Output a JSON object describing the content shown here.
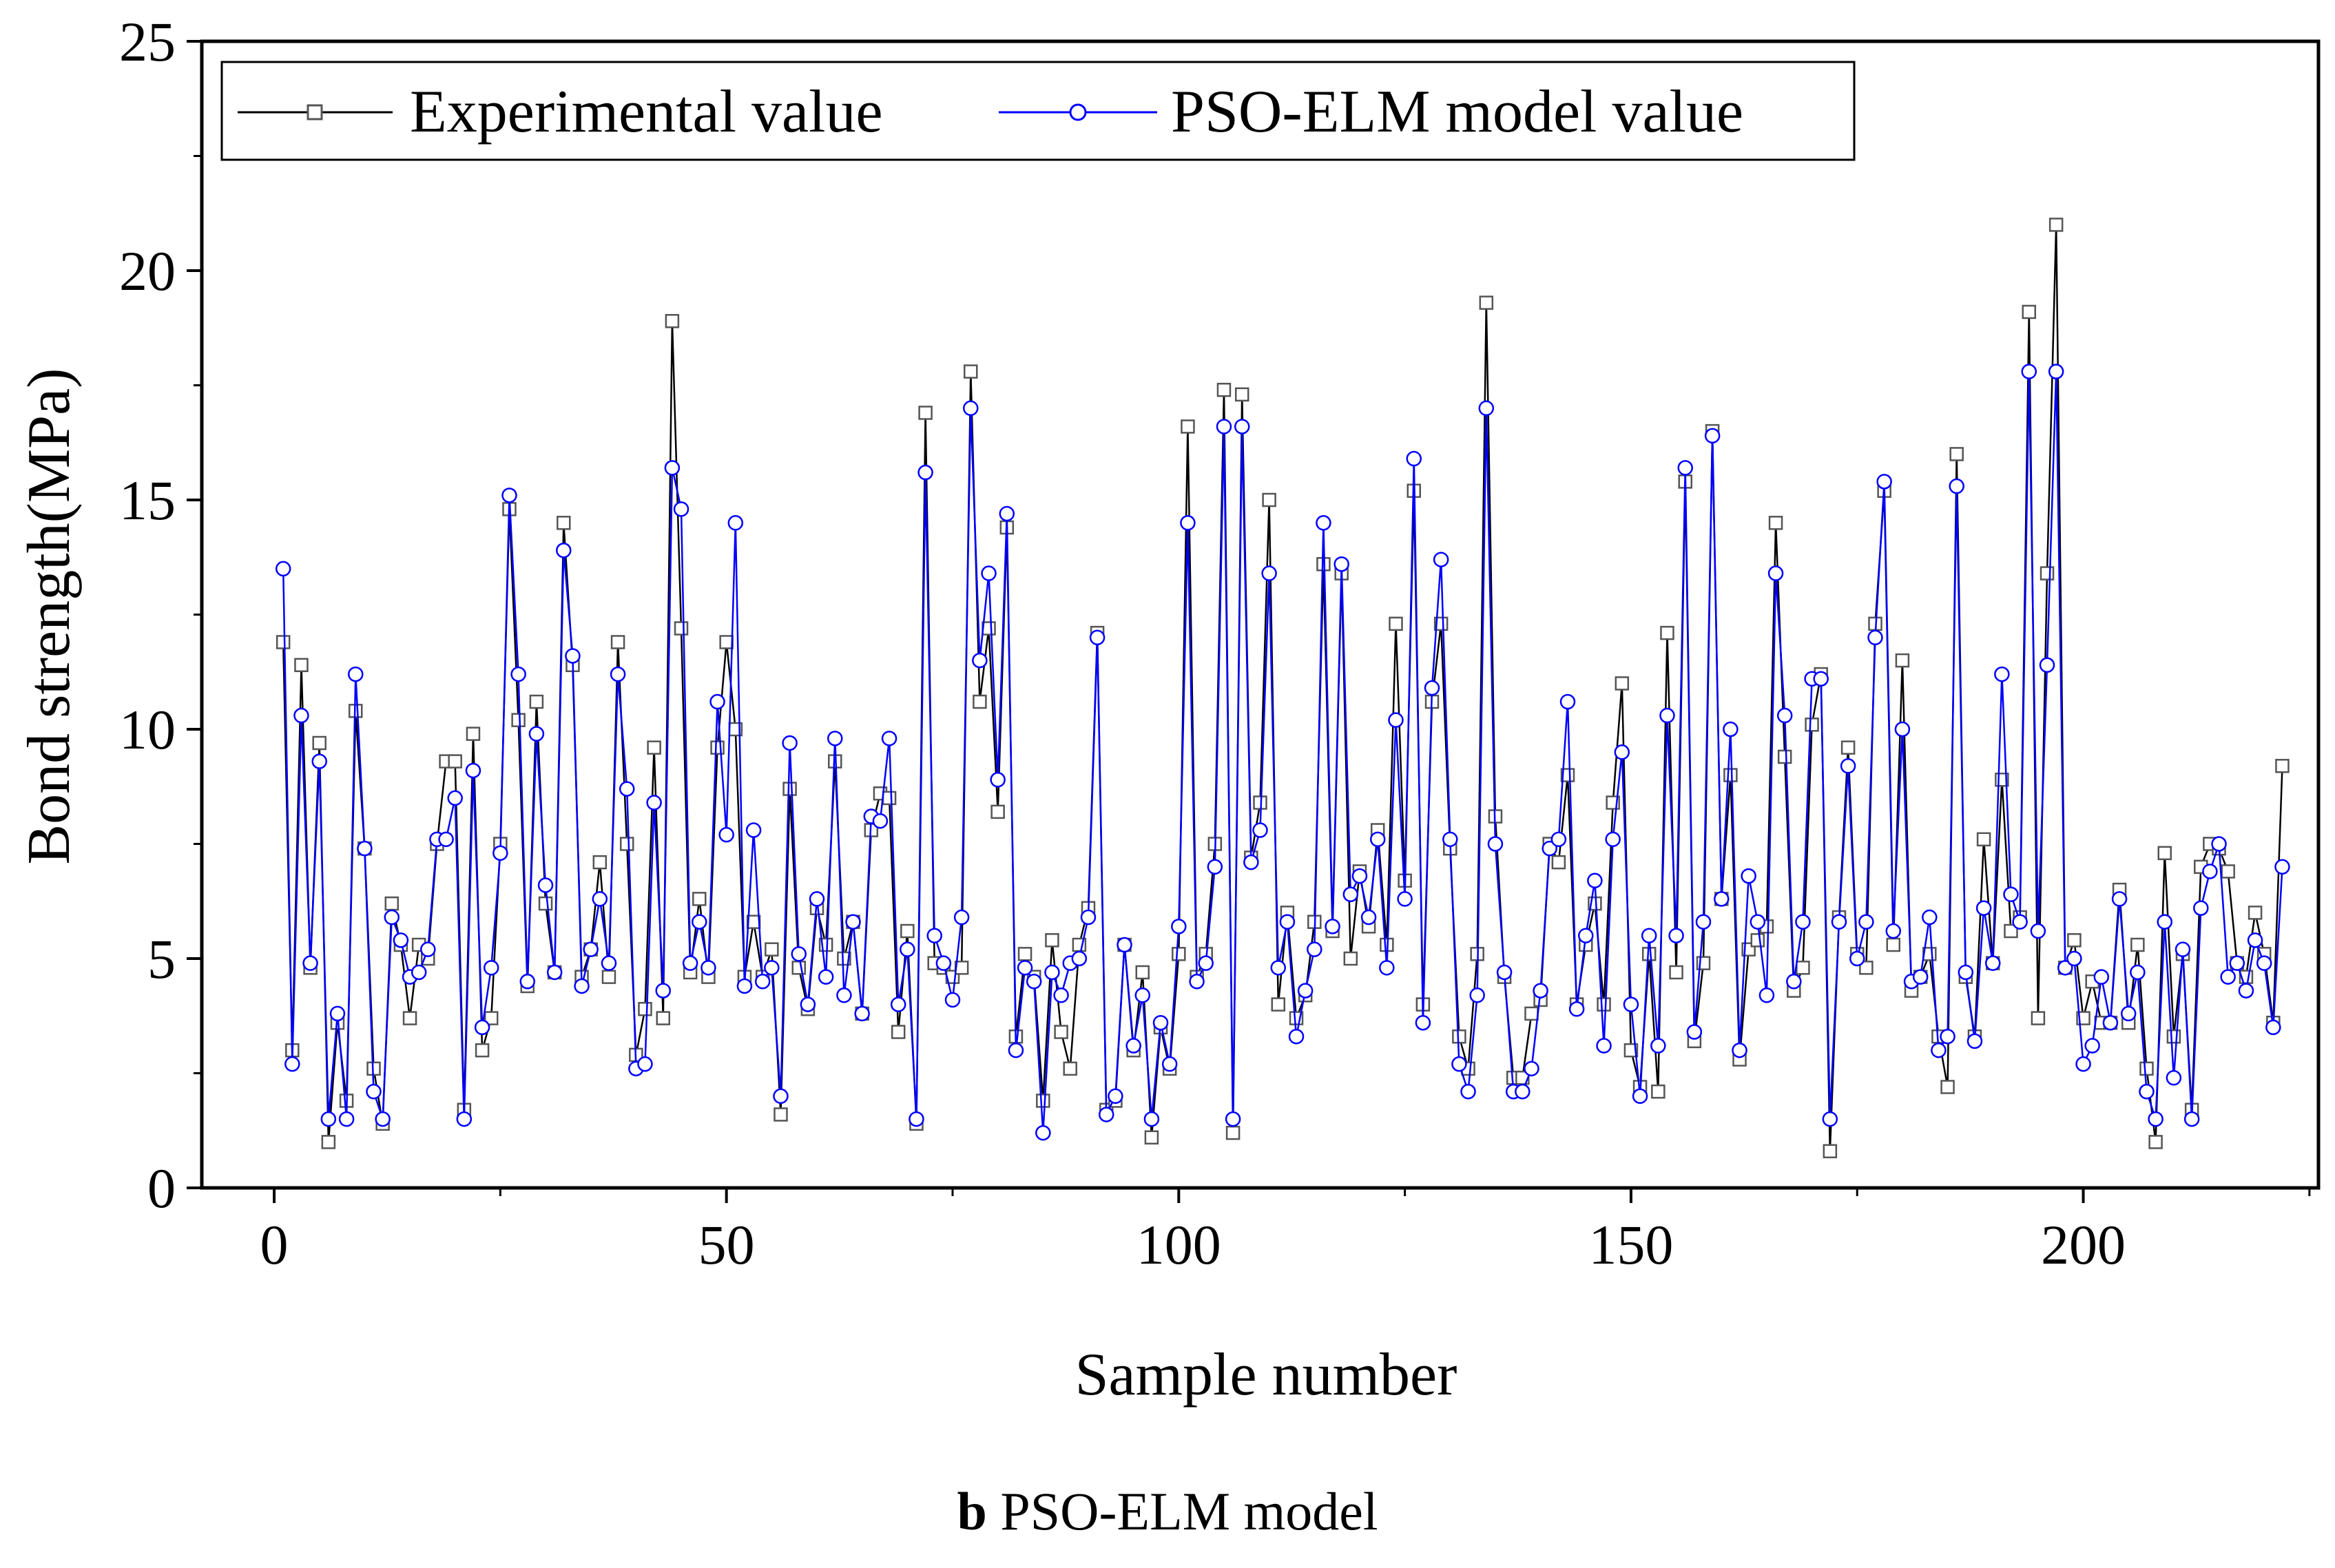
{
  "chart_data": {
    "type": "line",
    "title": "",
    "xlabel": "Sample number",
    "ylabel": "Bond strength(MPa)",
    "xlim": [
      -8,
      226
    ],
    "ylim": [
      0,
      25
    ],
    "xticks": [
      0,
      50,
      100,
      150,
      200
    ],
    "yticks": [
      0,
      5,
      10,
      15,
      20,
      25
    ],
    "legend_position": "top-left",
    "x": [
      1,
      2,
      3,
      4,
      5,
      6,
      7,
      8,
      9,
      10,
      11,
      12,
      13,
      14,
      15,
      16,
      17,
      18,
      19,
      20,
      21,
      22,
      23,
      24,
      25,
      26,
      27,
      28,
      29,
      30,
      31,
      32,
      33,
      34,
      35,
      36,
      37,
      38,
      39,
      40,
      41,
      42,
      43,
      44,
      45,
      46,
      47,
      48,
      49,
      50,
      51,
      52,
      53,
      54,
      55,
      56,
      57,
      58,
      59,
      60,
      61,
      62,
      63,
      64,
      65,
      66,
      67,
      68,
      69,
      70,
      71,
      72,
      73,
      74,
      75,
      76,
      77,
      78,
      79,
      80,
      81,
      82,
      83,
      84,
      85,
      86,
      87,
      88,
      89,
      90,
      91,
      92,
      93,
      94,
      95,
      96,
      97,
      98,
      99,
      100,
      101,
      102,
      103,
      104,
      105,
      106,
      107,
      108,
      109,
      110,
      111,
      112,
      113,
      114,
      115,
      116,
      117,
      118,
      119,
      120,
      121,
      122,
      123,
      124,
      125,
      126,
      127,
      128,
      129,
      130,
      131,
      132,
      133,
      134,
      135,
      136,
      137,
      138,
      139,
      140,
      141,
      142,
      143,
      144,
      145,
      146,
      147,
      148,
      149,
      150,
      151,
      152,
      153,
      154,
      155,
      156,
      157,
      158,
      159,
      160,
      161,
      162,
      163,
      164,
      165,
      166,
      167,
      168,
      169,
      170,
      171,
      172,
      173,
      174,
      175,
      176,
      177,
      178,
      179,
      180,
      181,
      182,
      183,
      184,
      185,
      186,
      187,
      188,
      189,
      190,
      191,
      192,
      193,
      194,
      195,
      196,
      197,
      198,
      199,
      200,
      201,
      202,
      203,
      204,
      205,
      206,
      207,
      208,
      209,
      210,
      211,
      212,
      213,
      214,
      215,
      216,
      217,
      218,
      219,
      220,
      221,
      222
    ],
    "series": [
      {
        "name": "Experimental value",
        "color": "#000000",
        "marker": "square",
        "values": [
          11.9,
          3.0,
          11.4,
          4.8,
          9.7,
          1.0,
          3.6,
          1.9,
          10.4,
          7.4,
          2.6,
          1.4,
          6.2,
          5.3,
          3.7,
          5.3,
          5.0,
          7.5,
          9.3,
          9.3,
          1.7,
          9.9,
          3.0,
          3.7,
          7.5,
          14.8,
          10.2,
          4.4,
          10.6,
          6.2,
          4.7,
          14.5,
          11.4,
          4.6,
          5.2,
          7.1,
          4.6,
          11.9,
          7.5,
          2.9,
          3.9,
          9.6,
          3.7,
          18.9,
          12.2,
          4.7,
          6.3,
          4.6,
          9.6,
          11.9,
          10.0,
          4.6,
          5.8,
          4.6,
          5.2,
          1.6,
          8.7,
          4.8,
          3.9,
          6.1,
          5.3,
          9.3,
          5.0,
          5.8,
          3.8,
          7.8,
          8.6,
          8.5,
          3.4,
          5.6,
          1.4,
          16.9,
          4.9,
          4.8,
          4.6,
          4.8,
          17.8,
          10.6,
          12.2,
          8.2,
          14.4,
          3.3,
          5.1,
          4.6,
          1.9,
          5.4,
          3.4,
          2.6,
          5.3,
          6.1,
          12.1,
          1.7,
          1.9,
          5.3,
          3.0,
          4.7,
          1.1,
          3.5,
          2.6,
          5.1,
          16.6,
          4.6,
          5.1,
          7.5,
          17.4,
          1.2,
          17.3,
          7.2,
          8.4,
          15.0,
          4.0,
          6.0,
          3.7,
          4.2,
          5.8,
          13.6,
          5.6,
          13.4,
          5.0,
          6.9,
          5.7,
          7.8,
          5.3,
          12.3,
          6.7,
          15.2,
          4.0,
          10.6,
          12.3,
          7.4,
          3.3,
          2.6,
          5.1,
          19.3,
          8.1,
          4.6,
          2.4,
          2.4,
          3.8,
          4.1,
          7.5,
          7.1,
          9.0,
          4.0,
          5.3,
          6.2,
          4.0,
          8.4,
          11.0,
          3.0,
          2.2,
          5.1,
          2.1,
          12.1,
          4.7,
          15.4,
          3.2,
          4.9,
          16.5,
          6.3,
          9.0,
          2.8,
          5.2,
          5.4,
          5.7,
          14.5,
          9.4,
          4.3,
          4.8,
          10.1,
          11.2,
          0.8,
          5.9,
          9.6,
          5.1,
          4.8,
          12.3,
          15.2,
          5.3,
          11.5,
          4.3,
          4.6,
          5.1,
          3.3,
          2.2,
          16.0,
          4.6,
          3.3,
          7.6,
          4.9,
          8.9,
          5.6,
          5.9,
          19.1,
          3.7,
          13.4,
          21.0,
          4.8,
          5.4,
          3.7,
          4.5,
          3.6,
          3.6,
          6.5,
          3.6,
          5.3,
          2.6,
          1.0,
          7.3,
          3.3,
          5.1,
          1.7,
          7.0,
          7.5,
          7.4,
          6.9,
          4.9,
          4.6,
          6.0,
          5.1,
          3.6,
          9.2
        ]
      },
      {
        "name": "PSO-ELM model value",
        "color": "#0000ff",
        "marker": "circle",
        "values": [
          13.5,
          2.7,
          10.3,
          4.9,
          9.3,
          1.5,
          3.8,
          1.5,
          11.2,
          7.4,
          2.1,
          1.5,
          5.9,
          5.4,
          4.6,
          4.7,
          5.2,
          7.6,
          7.6,
          8.5,
          1.5,
          9.1,
          3.5,
          4.8,
          7.3,
          15.1,
          11.2,
          4.5,
          9.9,
          6.6,
          4.7,
          13.9,
          11.6,
          4.4,
          5.2,
          6.3,
          4.9,
          11.2,
          8.7,
          2.6,
          2.7,
          8.4,
          4.3,
          15.7,
          14.8,
          4.9,
          5.8,
          4.8,
          10.6,
          7.7,
          14.5,
          4.4,
          7.8,
          4.5,
          4.8,
          2.0,
          9.7,
          5.1,
          4.0,
          6.3,
          4.6,
          9.8,
          4.2,
          5.8,
          3.8,
          8.1,
          8.0,
          9.8,
          4.0,
          5.2,
          1.5,
          15.6,
          5.5,
          4.9,
          4.1,
          5.9,
          17.0,
          11.5,
          13.4,
          8.9,
          14.7,
          3.0,
          4.8,
          4.5,
          1.2,
          4.7,
          4.2,
          4.9,
          5.0,
          5.9,
          12.0,
          1.6,
          2.0,
          5.3,
          3.1,
          4.2,
          1.5,
          3.6,
          2.7,
          5.7,
          14.5,
          4.5,
          4.9,
          7.0,
          16.6,
          1.5,
          16.6,
          7.1,
          7.8,
          13.4,
          4.8,
          5.8,
          3.3,
          4.3,
          5.2,
          14.5,
          5.7,
          13.6,
          6.4,
          6.8,
          5.9,
          7.6,
          4.8,
          10.2,
          6.3,
          15.9,
          3.6,
          10.9,
          13.7,
          7.6,
          2.7,
          2.1,
          4.2,
          17.0,
          7.5,
          4.7,
          2.1,
          2.1,
          2.6,
          4.3,
          7.4,
          7.6,
          10.6,
          3.9,
          5.5,
          6.7,
          3.1,
          7.6,
          9.5,
          4.0,
          2.0,
          5.5,
          3.1,
          10.3,
          5.5,
          15.7,
          3.4,
          5.8,
          16.4,
          6.3,
          10.0,
          3.0,
          6.8,
          5.8,
          4.2,
          13.4,
          10.3,
          4.5,
          5.8,
          11.1,
          11.1,
          1.5,
          5.8,
          9.2,
          5.0,
          5.8,
          12.0,
          15.4,
          5.6,
          10.0,
          4.5,
          4.6,
          5.9,
          3.0,
          3.3,
          15.3,
          4.7,
          3.2,
          6.1,
          4.9,
          11.2,
          6.4,
          5.8,
          17.8,
          5.6,
          11.4,
          17.8,
          4.8,
          5.0,
          2.7,
          3.1,
          4.6,
          3.6,
          6.3,
          3.8,
          4.7,
          2.1,
          1.5,
          5.8,
          2.4,
          5.2,
          1.5,
          6.1,
          6.9,
          7.5,
          4.6,
          4.9,
          4.3,
          5.4,
          4.9,
          3.5,
          7.0
        ]
      }
    ]
  },
  "caption": {
    "label": "b",
    "text": " PSO-ELM model"
  }
}
